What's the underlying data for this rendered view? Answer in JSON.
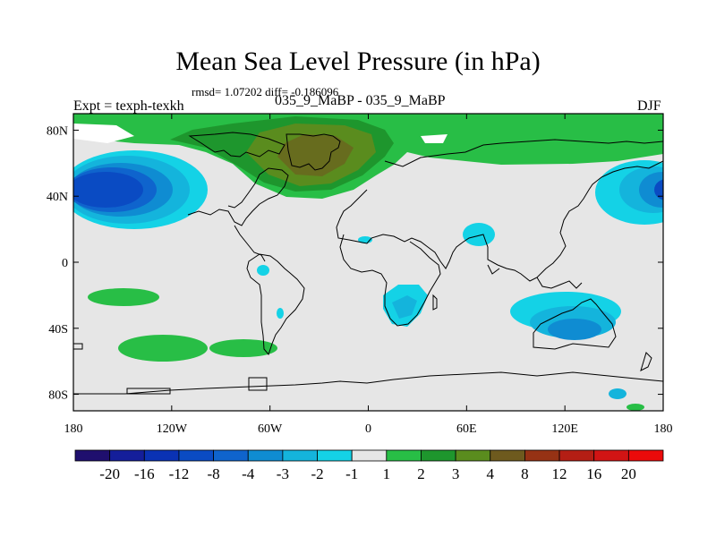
{
  "chart_data": {
    "type": "heatmap",
    "title": "Mean Sea Level Pressure (in hPa)",
    "stats_text": "rmsd= 1.07202 diff= -0.186096",
    "experiment_label": "Expt = texph-texkh",
    "subtitle": "035_9_MaBP - 035_9_MaBP",
    "season": "DJF",
    "x_ticks": [
      "180",
      "120W",
      "60W",
      "0",
      "60E",
      "120E",
      "180"
    ],
    "y_ticks": [
      "80N",
      "40N",
      "0",
      "40S",
      "80S"
    ],
    "xlim": [
      -180,
      180
    ],
    "ylim": [
      -90,
      90
    ],
    "x_tick_values": [
      -180,
      -120,
      -60,
      0,
      60,
      120,
      180
    ],
    "y_tick_values": [
      80,
      40,
      0,
      -40,
      -80
    ],
    "colorbar": {
      "labels": [
        "-20",
        "-16",
        "-12",
        "-8",
        "-4",
        "-3",
        "-2",
        "-1",
        "1",
        "2",
        "3",
        "4",
        "8",
        "12",
        "16",
        "20"
      ],
      "colors": [
        "#1f0f6e",
        "#141e9a",
        "#0a32b4",
        "#0a4bc3",
        "#0f64cd",
        "#0f8cd2",
        "#14b4dc",
        "#14d2e6",
        "#e6e6e6",
        "#28be46",
        "#1e962d",
        "#5a8c1e",
        "#6e5a1e",
        "#963214",
        "#b41e14",
        "#d21414",
        "#eb0a0a"
      ]
    },
    "anomalies": [
      {
        "name": "north-pacific-low",
        "lon": -145,
        "lat": 42,
        "value": -8
      },
      {
        "name": "arctic-atlantic-high",
        "lon": -40,
        "lat": 70,
        "value": 4
      },
      {
        "name": "north-pacific-east-low",
        "lon": 170,
        "lat": 40,
        "value": -4
      },
      {
        "name": "south-indian-low",
        "lon": 120,
        "lat": -40,
        "value": -3
      },
      {
        "name": "south-africa-low",
        "lon": 25,
        "lat": -25,
        "value": -2
      },
      {
        "name": "arabian-sea-low",
        "lon": 60,
        "lat": 15,
        "value": -1
      },
      {
        "name": "south-pacific-high",
        "lon": -130,
        "lat": -20,
        "value": 2
      },
      {
        "name": "south-atlantic-high",
        "lon": -50,
        "lat": -45,
        "value": 2
      }
    ]
  }
}
